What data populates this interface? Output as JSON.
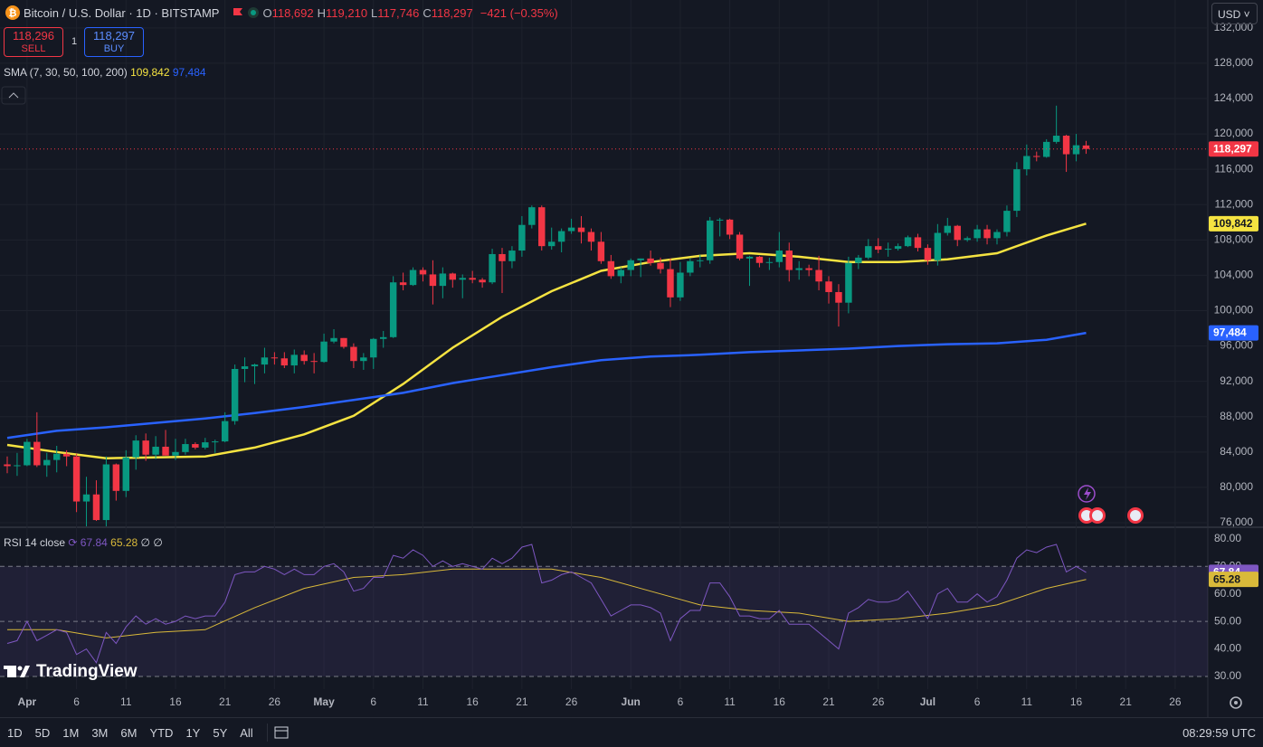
{
  "header": {
    "symbol": "Bitcoin / U.S. Dollar · 1D · BITSTAMP",
    "ohlc": [
      {
        "key": "O",
        "value": "118,692"
      },
      {
        "key": "H",
        "value": "119,210"
      },
      {
        "key": "L",
        "value": "117,746"
      },
      {
        "key": "C",
        "value": "118,297"
      }
    ],
    "change": "−421 (−0.35%)",
    "currency": "USD"
  },
  "trade": {
    "sell_price": "118,296",
    "sell": "SELL",
    "spread": "1",
    "buy_price": "118,297",
    "buy": "BUY"
  },
  "toolbar": {
    "ranges": [
      "1D",
      "5D",
      "1M",
      "3M",
      "6M",
      "YTD",
      "1Y",
      "5Y",
      "All"
    ],
    "clock": "08:29:59 UTC"
  },
  "logo": "TradingView",
  "chart_data": [
    {
      "type": "candlestick",
      "categories": [
        "Mar 30",
        "Mar 31",
        "Apr 1",
        "Apr 2",
        "Apr 3",
        "Apr 4",
        "Apr 5",
        "Apr 6",
        "Apr 7",
        "Apr 8",
        "Apr 9",
        "Apr 10",
        "Apr 11",
        "Apr 12",
        "Apr 13",
        "Apr 14",
        "Apr 15",
        "Apr 16",
        "Apr 17",
        "Apr 18",
        "Apr 19",
        "Apr 20",
        "Apr 21",
        "Apr 22",
        "Apr 23",
        "Apr 24",
        "Apr 25",
        "Apr 26",
        "Apr 27",
        "Apr 28",
        "Apr 29",
        "Apr 30",
        "May 1",
        "May 2",
        "May 3",
        "May 4",
        "May 5",
        "May 6",
        "May 7",
        "May 8",
        "May 9",
        "May 10",
        "May 11",
        "May 12",
        "May 13",
        "May 14",
        "May 15",
        "May 16",
        "May 17",
        "May 18",
        "May 19",
        "May 20",
        "May 21",
        "May 22",
        "May 23",
        "May 24",
        "May 25",
        "May 26",
        "May 27",
        "May 28",
        "May 29",
        "May 30",
        "May 31",
        "Jun 1",
        "Jun 2",
        "Jun 3",
        "Jun 4",
        "Jun 5",
        "Jun 6",
        "Jun 7",
        "Jun 8",
        "Jun 9",
        "Jun 10",
        "Jun 11",
        "Jun 12",
        "Jun 13",
        "Jun 14",
        "Jun 15",
        "Jun 16",
        "Jun 17",
        "Jun 18",
        "Jun 19",
        "Jun 20",
        "Jun 21",
        "Jun 22",
        "Jun 23",
        "Jun 24",
        "Jun 25",
        "Jun 26",
        "Jun 27",
        "Jun 28",
        "Jun 29",
        "Jun 30",
        "Jul 1",
        "Jul 2",
        "Jul 3",
        "Jul 4",
        "Jul 5",
        "Jul 6",
        "Jul 7",
        "Jul 8",
        "Jul 9",
        "Jul 10",
        "Jul 11",
        "Jul 12",
        "Jul 13",
        "Jul 14",
        "Jul 15",
        "Jul 16",
        "Jul 17"
      ],
      "open": [
        82600,
        82400,
        82500,
        85150,
        82500,
        83100,
        83800,
        83500,
        78400,
        79200,
        76300,
        82600,
        79600,
        83400,
        85300,
        83700,
        84600,
        83600,
        84000,
        84900,
        84500,
        85100,
        85200,
        87500,
        93400,
        93700,
        93900,
        94700,
        94600,
        93800,
        95000,
        94300,
        94200,
        96500,
        96900,
        95900,
        94300,
        94700,
        96800,
        97000,
        103200,
        102900,
        104600,
        104100,
        102800,
        104200,
        103500,
        103700,
        103500,
        103200,
        106400,
        105600,
        106800,
        109700,
        111700,
        107300,
        107800,
        109000,
        109400,
        108900,
        107800,
        105600,
        103900,
        104600,
        105700,
        105900,
        105400,
        104700,
        101500,
        104300,
        105600,
        105700,
        110200,
        110300,
        108600,
        105900,
        106100,
        105400,
        105500,
        106800,
        104600,
        104800,
        104600,
        103300,
        102100,
        100900,
        105400,
        106000,
        107300,
        106900,
        107000,
        107300,
        108300,
        107100,
        105700,
        108800,
        109600,
        108000,
        108200,
        109200,
        108200,
        108900,
        111300,
        116000,
        117500,
        117400,
        119100,
        119800,
        117700,
        118692
      ],
      "high": [
        83500,
        83900,
        85500,
        88500,
        83900,
        84700,
        84200,
        83800,
        81200,
        80800,
        83500,
        82700,
        84200,
        85900,
        86100,
        85800,
        86500,
        85500,
        85500,
        85100,
        85600,
        85400,
        88500,
        93900,
        94700,
        94000,
        95800,
        95300,
        95300,
        95600,
        95500,
        95200,
        97400,
        97900,
        96900,
        96300,
        95200,
        96900,
        97700,
        103900,
        104300,
        104900,
        104900,
        105700,
        104900,
        104300,
        104100,
        104500,
        103700,
        107000,
        107100,
        107300,
        110700,
        111900,
        111900,
        109400,
        109300,
        110400,
        110700,
        109300,
        108900,
        106300,
        104900,
        105900,
        105900,
        106800,
        106000,
        105900,
        105500,
        105900,
        106300,
        110600,
        110500,
        110400,
        108900,
        106200,
        106200,
        106000,
        108900,
        107700,
        105600,
        105200,
        106200,
        103900,
        103000,
        106100,
        106300,
        108100,
        108200,
        107700,
        107600,
        108500,
        108700,
        107500,
        109800,
        110500,
        109700,
        108400,
        109700,
        109700,
        109200,
        111900,
        116800,
        118800,
        118000,
        119400,
        123200,
        119900,
        120000,
        119210
      ],
      "low": [
        81600,
        81300,
        82400,
        82300,
        81200,
        81700,
        82400,
        77200,
        74500,
        76200,
        74600,
        78500,
        78900,
        82000,
        83000,
        83200,
        83600,
        83100,
        83700,
        84300,
        84300,
        83900,
        85100,
        87100,
        91900,
        91700,
        92900,
        93900,
        93500,
        92900,
        93900,
        92900,
        94100,
        96300,
        95700,
        93500,
        93300,
        93400,
        95800,
        96900,
        102300,
        102800,
        103300,
        100700,
        101400,
        102600,
        101400,
        103100,
        102600,
        103000,
        102000,
        104800,
        106100,
        109300,
        106800,
        106900,
        106600,
        108700,
        107600,
        106800,
        105300,
        103600,
        103100,
        103900,
        103800,
        105100,
        104200,
        100400,
        101100,
        103900,
        104900,
        105300,
        108400,
        108100,
        105700,
        102800,
        104900,
        104600,
        104900,
        103300,
        103500,
        103900,
        102300,
        100800,
        98200,
        99700,
        104700,
        105800,
        106500,
        106100,
        106800,
        107200,
        106700,
        105200,
        105100,
        108500,
        107300,
        107800,
        107800,
        107500,
        107500,
        108400,
        110600,
        115300,
        116900,
        117300,
        118900,
        115700,
        116900,
        117746
      ],
      "close": [
        82400,
        82500,
        85150,
        82500,
        83100,
        83800,
        83500,
        78400,
        79200,
        76300,
        82600,
        79600,
        83400,
        85300,
        83700,
        84600,
        83600,
        84000,
        84900,
        84500,
        85100,
        85200,
        87500,
        93400,
        93700,
        93900,
        94700,
        94600,
        93800,
        95000,
        94300,
        94200,
        96500,
        96900,
        95900,
        94300,
        94700,
        96800,
        97000,
        103200,
        102900,
        104600,
        104100,
        102800,
        104200,
        103500,
        103700,
        103500,
        103200,
        106400,
        105600,
        106800,
        109700,
        111700,
        107300,
        107800,
        109000,
        109400,
        108900,
        107800,
        105600,
        103900,
        104600,
        105700,
        105900,
        105400,
        104700,
        101500,
        104300,
        105600,
        105700,
        110200,
        110300,
        108600,
        105900,
        106100,
        105400,
        105500,
        106800,
        104600,
        104800,
        104600,
        103300,
        102100,
        100900,
        105400,
        106000,
        107300,
        106900,
        107000,
        107300,
        108300,
        107100,
        105700,
        108800,
        109600,
        108000,
        108200,
        109200,
        108200,
        108900,
        111300,
        116000,
        117500,
        117400,
        119100,
        119800,
        117700,
        118718,
        118297
      ],
      "up_color": "#089981",
      "down_color": "#f23645",
      "last_label": "118,297",
      "ylim": [
        75590,
        135155
      ],
      "yticks": [
        {
          "value": 76000,
          "label": "76,000"
        },
        {
          "value": 80000,
          "label": "80,000"
        },
        {
          "value": 84000,
          "label": "84,000"
        },
        {
          "value": 88000,
          "label": "88,000"
        },
        {
          "value": 92000,
          "label": "92,000"
        },
        {
          "value": 96000,
          "label": "96,000"
        },
        {
          "value": 100000,
          "label": "100,000"
        },
        {
          "value": 104000,
          "label": "104,000"
        },
        {
          "value": 108000,
          "label": "108,000"
        },
        {
          "value": 112000,
          "label": "112,000"
        },
        {
          "value": 116000,
          "label": "116,000"
        },
        {
          "value": 120000,
          "label": "120,000"
        },
        {
          "value": 124000,
          "label": "124,000"
        },
        {
          "value": 128000,
          "label": "128,000"
        },
        {
          "value": 132000,
          "label": "132,000"
        }
      ],
      "xticks": [
        {
          "value": "Apr 1",
          "label": "Apr"
        },
        {
          "value": "Apr 6",
          "label": "6"
        },
        {
          "value": "Apr 11",
          "label": "11"
        },
        {
          "value": "Apr 16",
          "label": "16"
        },
        {
          "value": "Apr 21",
          "label": "21"
        },
        {
          "value": "Apr 26",
          "label": "26"
        },
        {
          "value": "May 1",
          "label": "May"
        },
        {
          "value": "May 6",
          "label": "6"
        },
        {
          "value": "May 11",
          "label": "11"
        },
        {
          "value": "May 16",
          "label": "16"
        },
        {
          "value": "May 21",
          "label": "21"
        },
        {
          "value": "May 26",
          "label": "26"
        },
        {
          "value": "Jun 1",
          "label": "Jun"
        },
        {
          "value": "Jun 6",
          "label": "6"
        },
        {
          "value": "Jun 11",
          "label": "11"
        },
        {
          "value": "Jun 16",
          "label": "16"
        },
        {
          "value": "Jun 21",
          "label": "21"
        },
        {
          "value": "Jun 26",
          "label": "26"
        },
        {
          "value": "Jul 1",
          "label": "Jul"
        },
        {
          "value": "Jul 6",
          "label": "6"
        },
        {
          "value": "Jul 11",
          "label": "11"
        },
        {
          "value": "Jul 16",
          "label": "16"
        },
        {
          "value": "Jul 21",
          "label": "21"
        },
        {
          "value": "Jul 26",
          "label": "26"
        }
      ],
      "grid": true,
      "indicator": {
        "label": "SMA (7, 30, 50, 100, 200)",
        "x": [
          "Mar 30",
          "Apr 4",
          "Apr 9",
          "Apr 14",
          "Apr 19",
          "Apr 24",
          "Apr 29",
          "May 4",
          "May 9",
          "May 14",
          "May 19",
          "May 24",
          "May 29",
          "Jun 3",
          "Jun 8",
          "Jun 13",
          "Jun 18",
          "Jun 23",
          "Jun 28",
          "Jul 3",
          "Jul 8",
          "Jul 13",
          "Jul 17"
        ],
        "series": [
          {
            "color": "#f5e341",
            "values": [
              84800,
              84000,
              83300,
              83400,
              83500,
              84500,
              86000,
              88100,
              91700,
              95800,
              99300,
              102200,
              104500,
              105500,
              106200,
              106500,
              106100,
              105500,
              105500,
              105800,
              106500,
              108500,
              109842
            ],
            "value_label": "109,842"
          },
          {
            "color": "#2962ff",
            "values": [
              85600,
              86400,
              86800,
              87300,
              87800,
              88400,
              89100,
              89900,
              90700,
              91800,
              92700,
              93600,
              94400,
              94800,
              95000,
              95300,
              95500,
              95700,
              96000,
              96200,
              96300,
              96700,
              97484
            ],
            "value_label": "97,484"
          }
        ]
      }
    },
    {
      "type": "line",
      "label": "RSI 14 close",
      "empty_marks": [
        "∅",
        "∅"
      ],
      "series": [
        {
          "color": "#7e57c2",
          "values": [
            42,
            43,
            50,
            43,
            45,
            47,
            46,
            38,
            40,
            35,
            46,
            42,
            48,
            52,
            49,
            51,
            49,
            50,
            52,
            51,
            52,
            52,
            57,
            67,
            68,
            68,
            70,
            69,
            67,
            69,
            67,
            67,
            70,
            71,
            68,
            61,
            62,
            66,
            66,
            74,
            73,
            76,
            74,
            70,
            72,
            70,
            71,
            70,
            69,
            73,
            71,
            73,
            77,
            78,
            64,
            65,
            67,
            68,
            66,
            64,
            58,
            52,
            54,
            56,
            56,
            55,
            53,
            43,
            51,
            54,
            54,
            64,
            64,
            59,
            52,
            52,
            51,
            51,
            54,
            49,
            49,
            49,
            46,
            43,
            40,
            53,
            55,
            58,
            57,
            57,
            58,
            61,
            56,
            51,
            60,
            62,
            57,
            57,
            60,
            57,
            59,
            65,
            73,
            76,
            75,
            77,
            78,
            68,
            70,
            67.84
          ],
          "value_label": "67.84"
        },
        {
          "color": "#d9b93a",
          "x": [
            "Mar 30",
            "Apr 4",
            "Apr 9",
            "Apr 14",
            "Apr 19",
            "Apr 24",
            "Apr 29",
            "May 4",
            "May 9",
            "May 14",
            "May 19",
            "May 24",
            "May 29",
            "Jun 3",
            "Jun 8",
            "Jun 13",
            "Jun 18",
            "Jun 23",
            "Jun 28",
            "Jul 3",
            "Jul 8",
            "Jul 13",
            "Jul 17"
          ],
          "values": [
            47,
            47,
            44,
            46,
            47,
            55,
            62,
            66,
            67,
            69,
            69,
            69,
            66,
            61,
            56,
            54,
            53,
            50,
            51,
            53,
            56,
            62,
            65.28
          ],
          "value_label": "65.28"
        }
      ],
      "ylim": [
        25.4,
        83.9
      ],
      "yticks": [
        {
          "value": 30,
          "label": "30.00"
        },
        {
          "value": 40,
          "label": "40.00"
        },
        {
          "value": 50,
          "label": "50.00"
        },
        {
          "value": 60,
          "label": "60.00"
        },
        {
          "value": 70,
          "label": "70.00"
        },
        {
          "value": 80,
          "label": "80.00"
        }
      ],
      "levels": [
        70,
        50,
        30
      ]
    }
  ]
}
